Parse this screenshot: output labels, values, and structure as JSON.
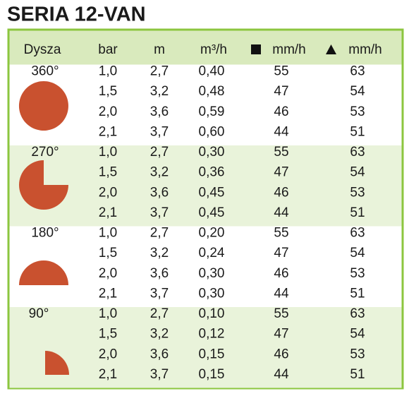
{
  "header": {
    "title": "SERIA 12-VAN"
  },
  "table": {
    "columns": [
      "Dysza",
      "bar",
      "m",
      "m³/h",
      "mm/h",
      "mm/h"
    ],
    "groups": [
      {
        "label": "360°",
        "rows": [
          [
            "1,0",
            "2,7",
            "0,40",
            "55",
            "63"
          ],
          [
            "1,5",
            "3,2",
            "0,48",
            "47",
            "54"
          ],
          [
            "2,0",
            "3,6",
            "0,59",
            "46",
            "53"
          ],
          [
            "2,1",
            "3,7",
            "0,60",
            "44",
            "51"
          ]
        ]
      },
      {
        "label": "270°",
        "rows": [
          [
            "1,0",
            "2,7",
            "0,30",
            "55",
            "63"
          ],
          [
            "1,5",
            "3,2",
            "0,36",
            "47",
            "54"
          ],
          [
            "2,0",
            "3,6",
            "0,45",
            "46",
            "53"
          ],
          [
            "2,1",
            "3,7",
            "0,45",
            "44",
            "51"
          ]
        ]
      },
      {
        "label": "180°",
        "rows": [
          [
            "1,0",
            "2,7",
            "0,20",
            "55",
            "63"
          ],
          [
            "1,5",
            "3,2",
            "0,24",
            "47",
            "54"
          ],
          [
            "2,0",
            "3,6",
            "0,30",
            "46",
            "53"
          ],
          [
            "2,1",
            "3,7",
            "0,30",
            "44",
            "51"
          ]
        ]
      },
      {
        "label": "90°",
        "rows": [
          [
            "1,0",
            "2,7",
            "0,10",
            "55",
            "63"
          ],
          [
            "1,5",
            "3,2",
            "0,12",
            "47",
            "54"
          ],
          [
            "2,0",
            "3,6",
            "0,15",
            "46",
            "53"
          ],
          [
            "2,1",
            "3,7",
            "0,15",
            "44",
            "51"
          ]
        ]
      }
    ]
  }
}
